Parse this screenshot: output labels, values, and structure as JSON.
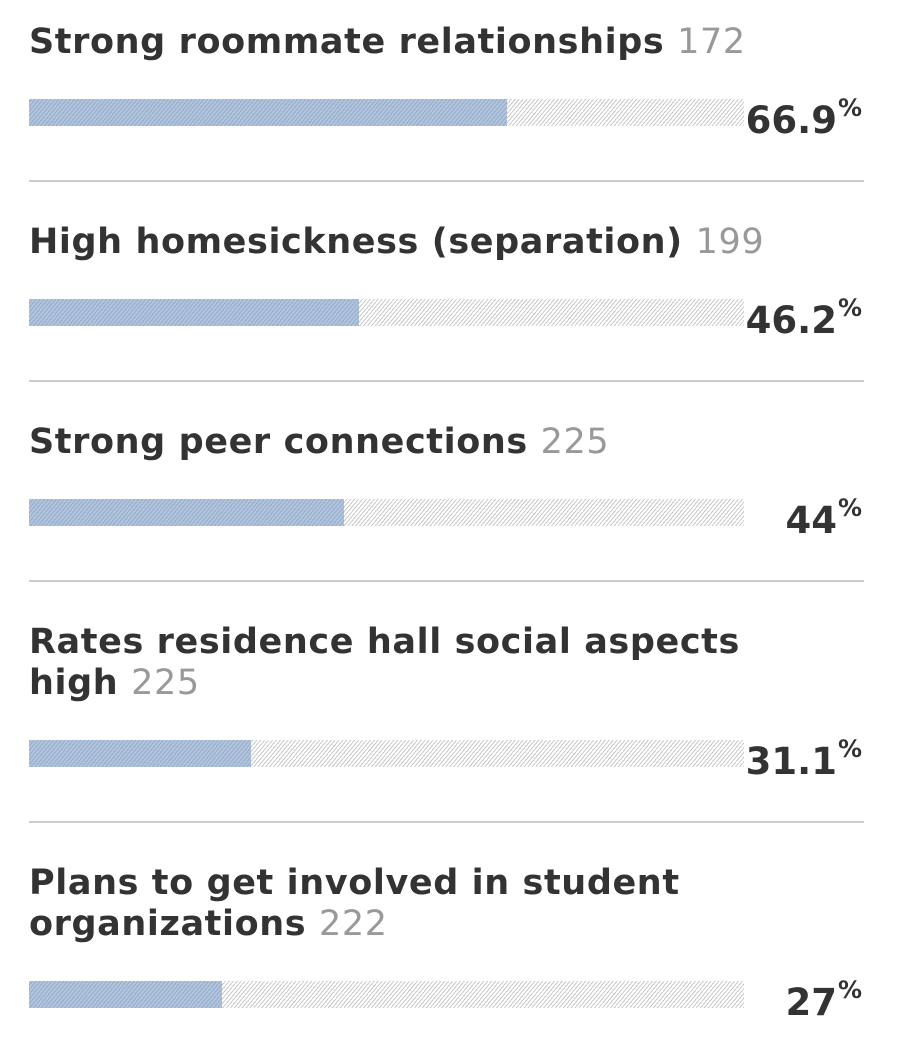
{
  "colors": {
    "bar_fill": "#a8bdd8",
    "bar_track": "#c8c8c8",
    "text": "#333333",
    "count_text": "#999999",
    "divider": "#cccccc"
  },
  "chart_data": {
    "type": "bar",
    "orientation": "horizontal",
    "percent_sign": "%",
    "xlim": [
      0,
      100
    ],
    "categories": [
      "Strong roommate relationships",
      "High homesickness (separation)",
      "Strong peer connections",
      "Rates residence hall social aspects high",
      "Plans to get involved in student organizations"
    ],
    "counts": [
      172,
      199,
      225,
      225,
      222
    ],
    "values": [
      66.9,
      46.2,
      44,
      31.1,
      27
    ],
    "value_labels": [
      "66.9",
      "46.2",
      "44",
      "31.1",
      "27"
    ]
  }
}
